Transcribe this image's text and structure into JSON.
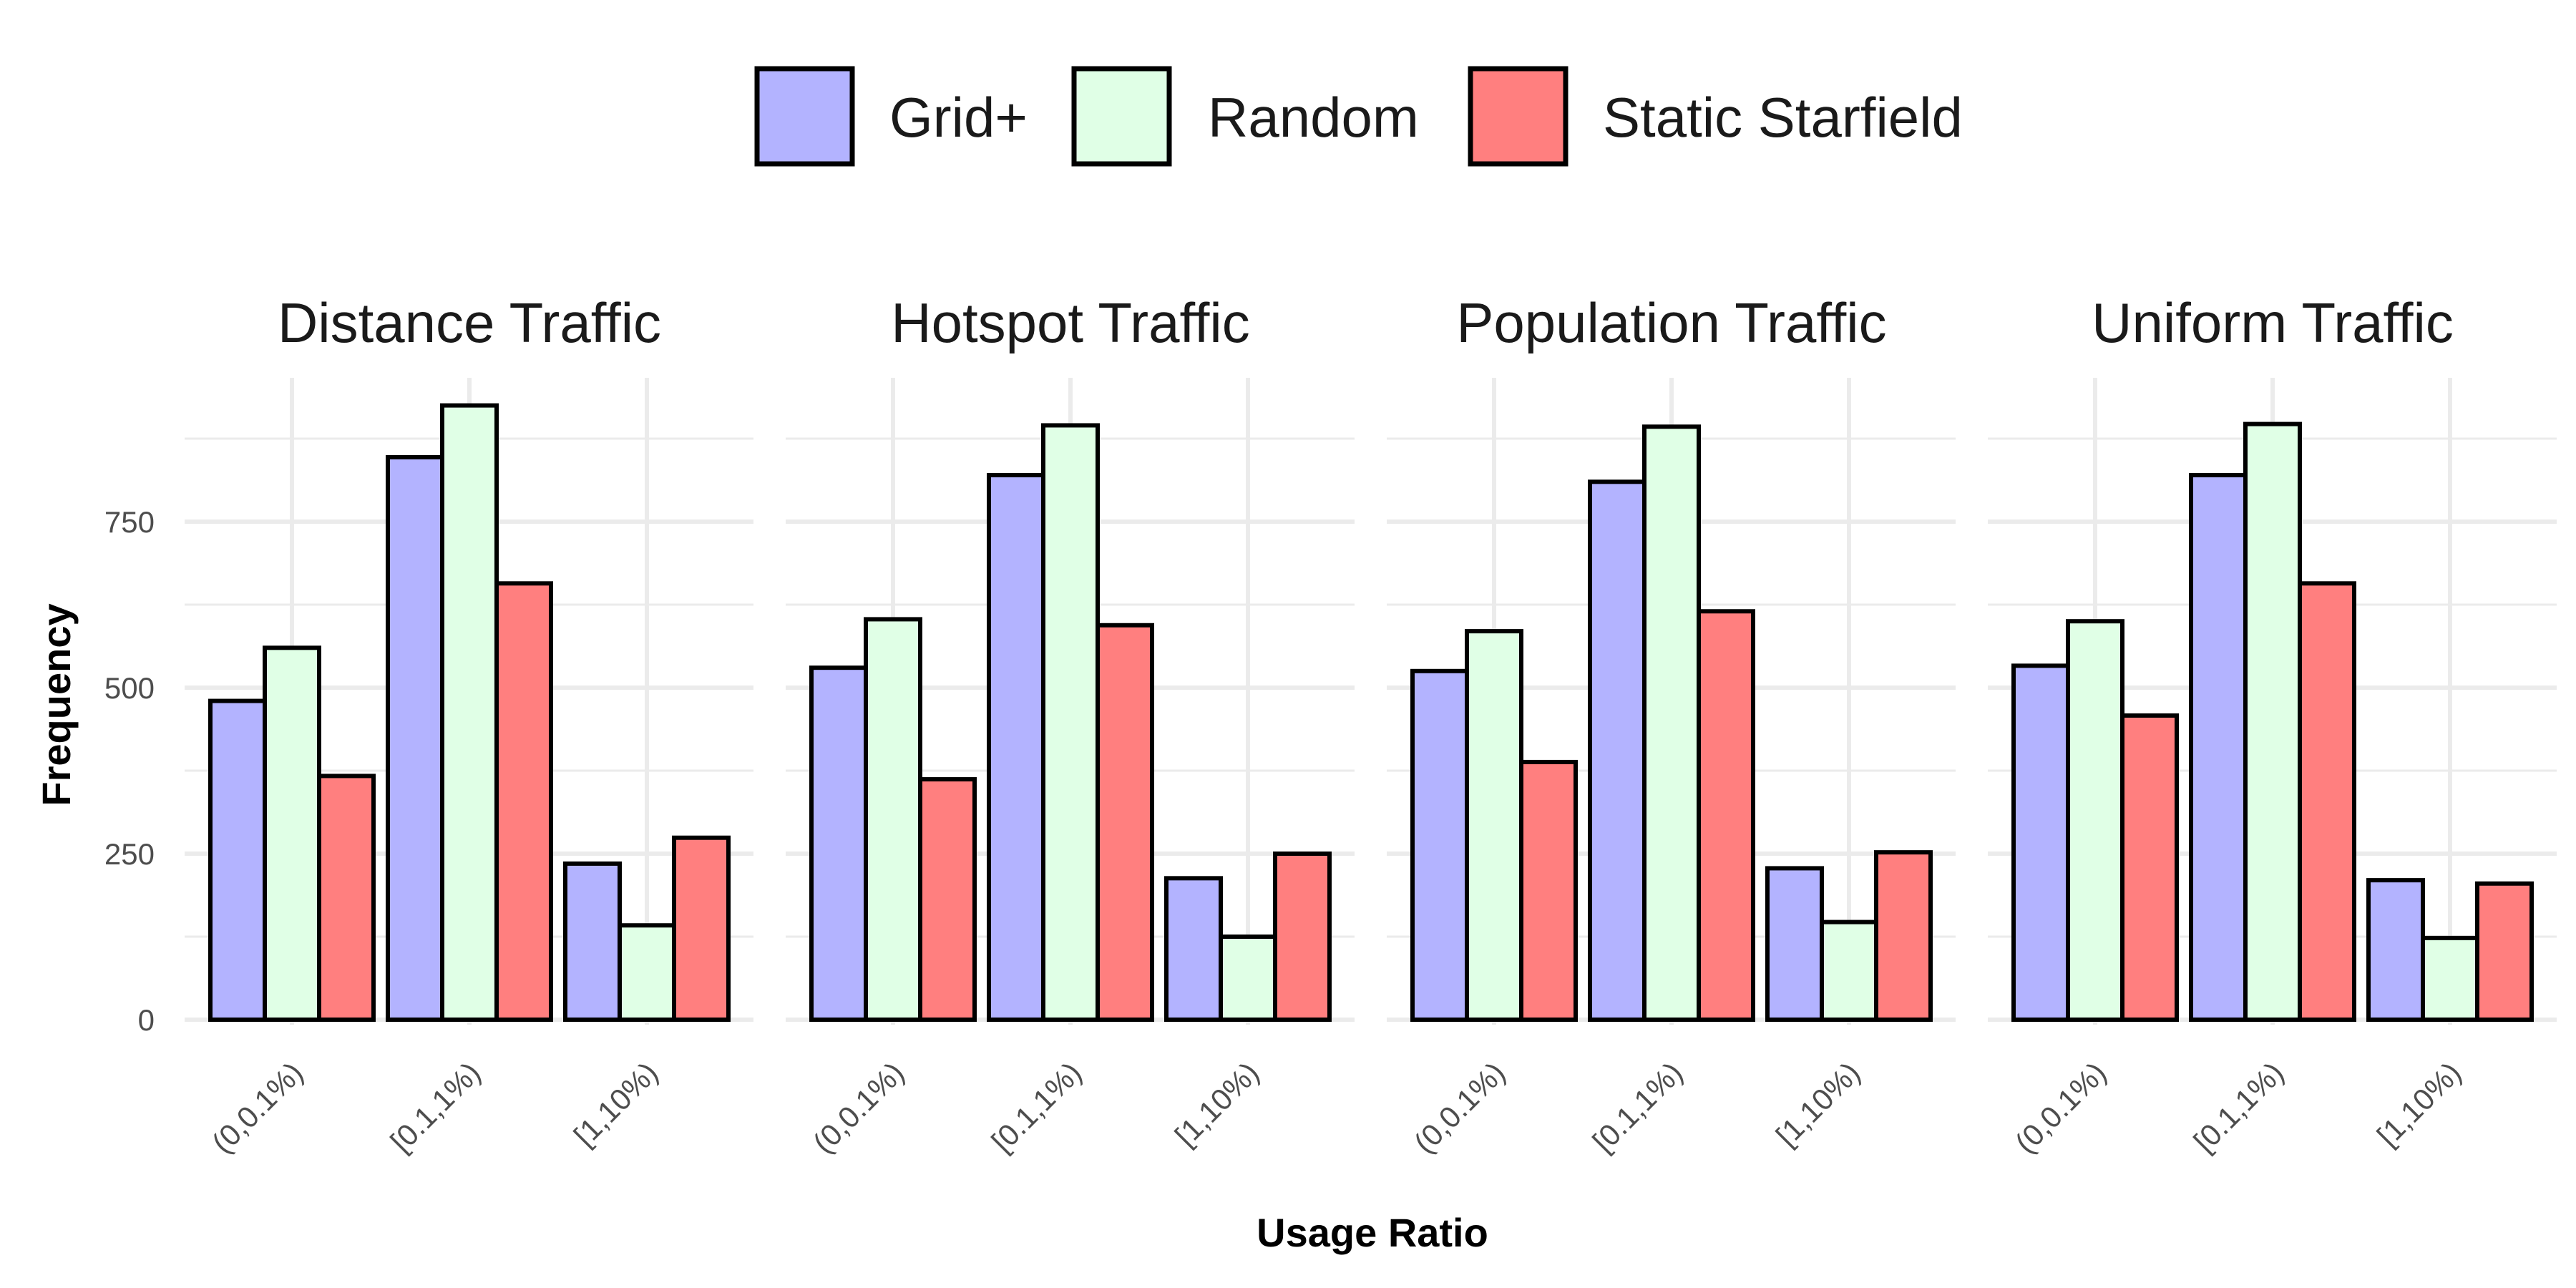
{
  "chart_data": {
    "type": "bar",
    "xlabel": "Usage Ratio",
    "ylabel": "Frequency",
    "ylim": [
      0,
      960
    ],
    "yticks": [
      0,
      250,
      500,
      750
    ],
    "categories": [
      "(0,0.1%)",
      "[0.1,1%)",
      "[1,10%)"
    ],
    "legend": {
      "placement": "top",
      "entries": [
        {
          "name": "Grid+",
          "color": "#b3b3ff"
        },
        {
          "name": "Random",
          "color": "#e0ffe6"
        },
        {
          "name": "Static Starfield",
          "color": "#ff7f7f"
        }
      ]
    },
    "panels": [
      {
        "title": "Distance Traffic",
        "series": [
          {
            "name": "Grid+",
            "values": [
              480,
              847,
              235
            ]
          },
          {
            "name": "Random",
            "values": [
              560,
              925,
              142
            ]
          },
          {
            "name": "Static Starfield",
            "values": [
              367,
              657,
              274
            ]
          }
        ]
      },
      {
        "title": "Hotspot Traffic",
        "series": [
          {
            "name": "Grid+",
            "values": [
              530,
              820,
              213
            ]
          },
          {
            "name": "Random",
            "values": [
              603,
              895,
              125
            ]
          },
          {
            "name": "Static Starfield",
            "values": [
              362,
              594,
              250
            ]
          }
        ]
      },
      {
        "title": "Population Traffic",
        "series": [
          {
            "name": "Grid+",
            "values": [
              525,
              810,
              228
            ]
          },
          {
            "name": "Random",
            "values": [
              585,
              893,
              147
            ]
          },
          {
            "name": "Static Starfield",
            "values": [
              388,
              615,
              252
            ]
          }
        ]
      },
      {
        "title": "Uniform Traffic",
        "series": [
          {
            "name": "Grid+",
            "values": [
              533,
              820,
              210
            ]
          },
          {
            "name": "Random",
            "values": [
              600,
              897,
              123
            ]
          },
          {
            "name": "Static Starfield",
            "values": [
              458,
              657,
              205
            ]
          }
        ]
      }
    ]
  }
}
